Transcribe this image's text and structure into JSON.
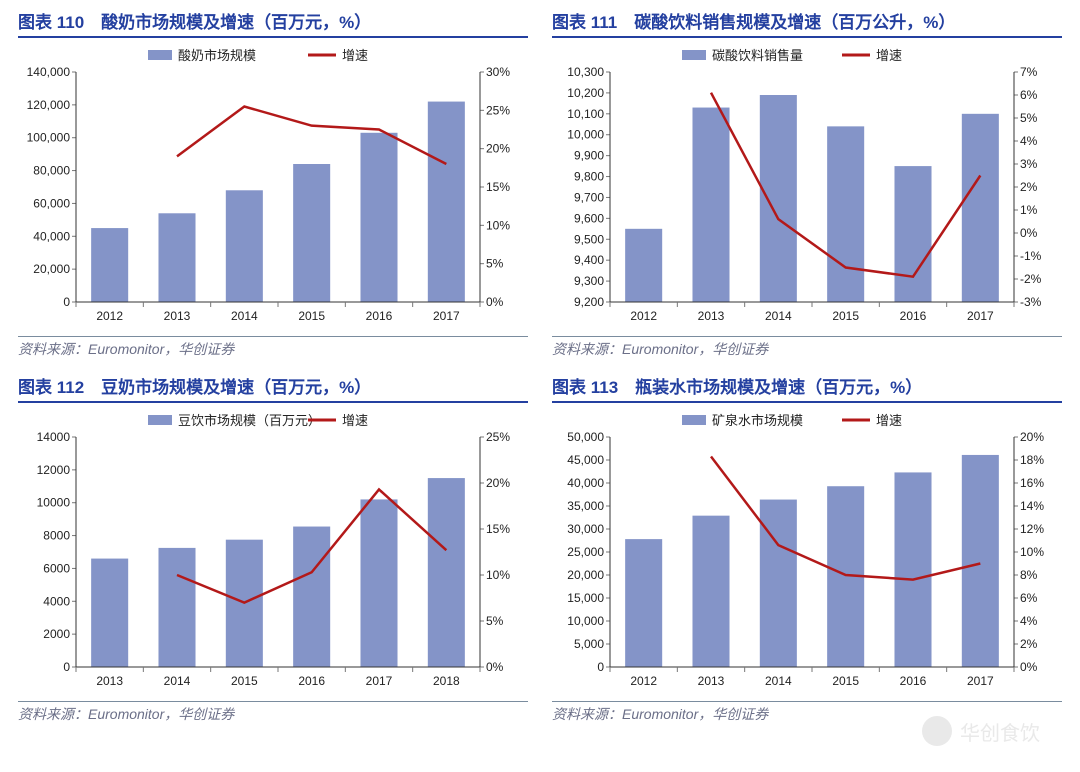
{
  "source_text": "资料来源：Euromonitor，华创证券",
  "watermark_text": "华创食饮",
  "charts": [
    {
      "id": 110,
      "title": "图表 110　酸奶市场规模及增速（百万元，%）",
      "type": "bar+line",
      "categories": [
        "2012",
        "2013",
        "2014",
        "2015",
        "2016",
        "2017"
      ],
      "bar_label": "酸奶市场规模",
      "line_label": "增速",
      "bar_values": [
        45000,
        54000,
        68000,
        84000,
        103000,
        122000
      ],
      "line_values": [
        null,
        19,
        25.5,
        23,
        22.5,
        18
      ],
      "left_axis": {
        "min": 0,
        "max": 140000,
        "step": 20000,
        "fmt": "comma"
      },
      "right_axis": {
        "min": 0,
        "max": 30,
        "step": 5,
        "fmt": "pct"
      },
      "colors": {
        "bar": "#8494c8",
        "line": "#b31919",
        "axis": "#333",
        "grid": "#ffffff",
        "bg": "#ffffff"
      },
      "bar_width": 0.55,
      "title_fontsize": 17
    },
    {
      "id": 111,
      "title": "图表 111　碳酸饮料销售规模及增速（百万公升，%）",
      "type": "bar+line",
      "categories": [
        "2012",
        "2013",
        "2014",
        "2015",
        "2016",
        "2017"
      ],
      "bar_label": "碳酸饮料销售量",
      "line_label": "增速",
      "bar_values": [
        9550,
        10130,
        10190,
        10040,
        9850,
        10100
      ],
      "line_values": [
        null,
        6.1,
        0.6,
        -1.5,
        -1.9,
        2.5
      ],
      "left_axis": {
        "min": 9200,
        "max": 10300,
        "step": 100,
        "fmt": "comma"
      },
      "right_axis": {
        "min": -3,
        "max": 7,
        "step": 1,
        "fmt": "pct"
      },
      "colors": {
        "bar": "#8494c8",
        "line": "#b31919",
        "axis": "#333",
        "grid": "#ffffff",
        "bg": "#ffffff"
      },
      "bar_width": 0.55,
      "title_fontsize": 17
    },
    {
      "id": 112,
      "title": "图表 112　豆奶市场规模及增速（百万元，%）",
      "type": "bar+line",
      "categories": [
        "2013",
        "2014",
        "2015",
        "2016",
        "2017",
        "2018"
      ],
      "bar_label": "豆饮市场规模（百万元）",
      "line_label": "增速",
      "bar_values": [
        6600,
        7250,
        7750,
        8550,
        10200,
        11500
      ],
      "line_values": [
        null,
        10,
        7,
        10.3,
        19.3,
        12.7
      ],
      "left_axis": {
        "min": 0,
        "max": 14000,
        "step": 2000,
        "fmt": "plain"
      },
      "right_axis": {
        "min": 0,
        "max": 25,
        "step": 5,
        "fmt": "pct"
      },
      "colors": {
        "bar": "#8494c8",
        "line": "#b31919",
        "axis": "#333",
        "grid": "#ffffff",
        "bg": "#ffffff"
      },
      "bar_width": 0.55,
      "title_fontsize": 17
    },
    {
      "id": 113,
      "title": "图表 113　瓶装水市场规模及增速（百万元，%）",
      "type": "bar+line",
      "categories": [
        "2012",
        "2013",
        "2014",
        "2015",
        "2016",
        "2017"
      ],
      "bar_label": "矿泉水市场规模",
      "line_label": "增速",
      "bar_values": [
        27800,
        32900,
        36400,
        39300,
        42300,
        46100
      ],
      "line_values": [
        null,
        18.3,
        10.6,
        8.0,
        7.6,
        9.0
      ],
      "left_axis": {
        "min": 0,
        "max": 50000,
        "step": 5000,
        "fmt": "comma"
      },
      "right_axis": {
        "min": 0,
        "max": 20,
        "step": 2,
        "fmt": "pct"
      },
      "colors": {
        "bar": "#8494c8",
        "line": "#b31919",
        "axis": "#333",
        "grid": "#ffffff",
        "bg": "#ffffff"
      },
      "bar_width": 0.55,
      "title_fontsize": 17
    }
  ]
}
